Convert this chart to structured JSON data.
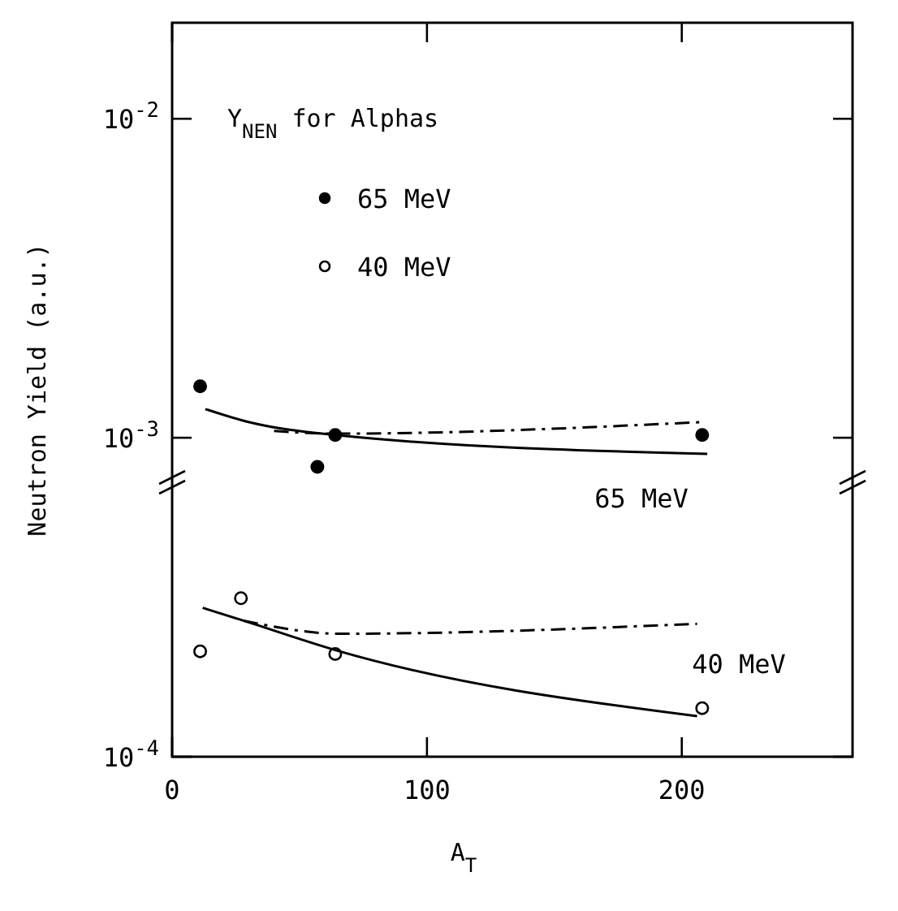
{
  "chart_data": {
    "type": "scatter",
    "xlabel": "A$_{T}$",
    "ylabel": "Neutron Yield (a.u.)",
    "legend_title": "Y$_{NEN}$ for Alphas",
    "legend": "top",
    "log": "y",
    "grid": false,
    "xlim": [
      0,
      267
    ],
    "xticks": [
      0,
      100,
      200
    ],
    "ylim": [
      0.0001,
      0.02
    ],
    "yticks": [
      {
        "value": 0.0001,
        "label": "10$^{-4}$"
      },
      {
        "value": 0.001,
        "label": "10$^{-3}$"
      },
      {
        "value": 0.01,
        "label": "10$^{-2}$"
      }
    ],
    "series": [
      {
        "name": "65 MeV",
        "marker": "circle",
        "color": "#000000",
        "x": [
          11,
          57,
          64,
          208
        ],
        "values": [
          0.00145,
          0.00081,
          0.00102,
          0.00102
        ]
      },
      {
        "name": "40 MeV",
        "marker": "circle",
        "color": "#ffffff",
        "x": [
          11,
          27,
          64,
          208
        ],
        "values": [
          0.000214,
          0.000314,
          0.00021,
          0.000142
        ]
      },
      {
        "type": "line",
        "line_style": "solid",
        "color": "#000000",
        "x": [
          13,
          30,
          64,
          210
        ],
        "values": [
          0.00123,
          0.00112,
          0.00102,
          0.00089
        ]
      },
      {
        "type": "line",
        "line_style": "dashdot",
        "color": "#000000",
        "x": [
          40,
          64,
          208
        ],
        "values": [
          0.00105,
          0.00103,
          0.00112
        ]
      },
      {
        "type": "line",
        "line_style": "solid",
        "color": "#000000",
        "x": [
          12,
          28,
          64,
          206
        ],
        "values": [
          0.000293,
          0.000267,
          0.000216,
          0.000134
        ]
      },
      {
        "type": "line",
        "line_style": "dashdot",
        "color": "#000000",
        "x": [
          28,
          66,
          206
        ],
        "values": [
          0.000267,
          0.000243,
          0.000261
        ]
      }
    ],
    "annotations": [
      "65 MeV",
      "40 MeV"
    ]
  }
}
